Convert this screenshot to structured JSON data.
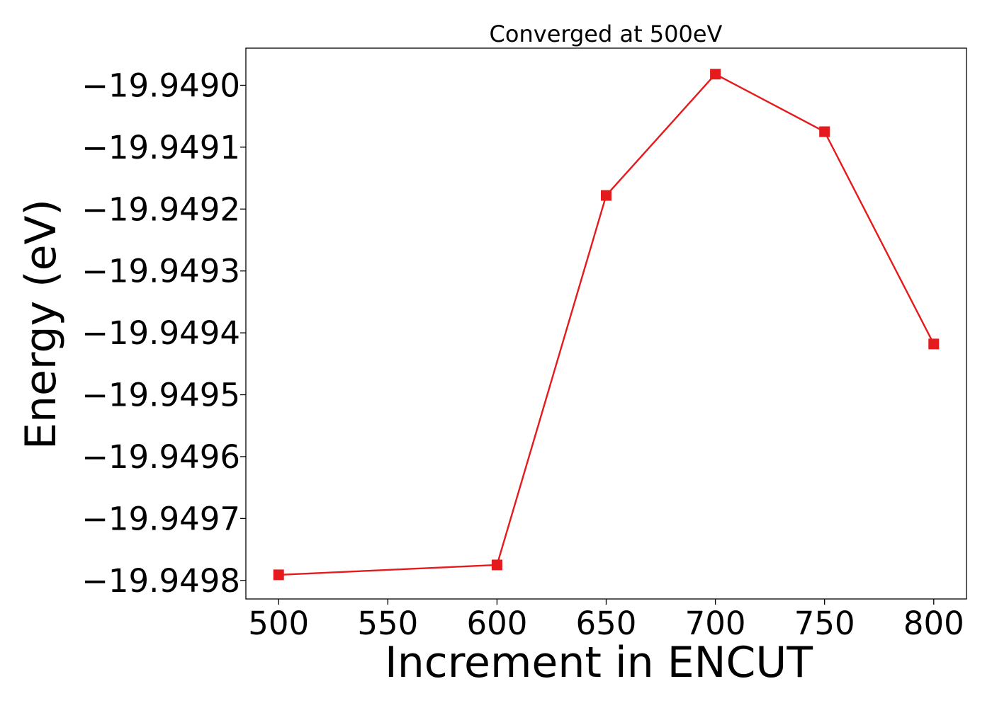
{
  "chart_data": {
    "type": "line",
    "title": "Converged at 500eV",
    "xlabel": "Increment in ENCUT",
    "ylabel": "Energy (eV)",
    "x": [
      500,
      600,
      650,
      700,
      750,
      800
    ],
    "series": [
      {
        "values": [
          -19.949791,
          -19.949775,
          -19.949178,
          -19.948982,
          -19.949075,
          -19.949418
        ],
        "color": "#e41a1c",
        "marker": "square"
      }
    ],
    "xlim": [
      485,
      815
    ],
    "ylim": [
      -19.94983,
      -19.94894
    ],
    "x_ticks": [
      500,
      550,
      600,
      650,
      700,
      750,
      800
    ],
    "x_tick_labels": [
      "500",
      "550",
      "600",
      "650",
      "700",
      "750",
      "800"
    ],
    "y_ticks": [
      -19.949,
      -19.9491,
      -19.9492,
      -19.9493,
      -19.9494,
      -19.9495,
      -19.9496,
      -19.9497,
      -19.9498
    ],
    "y_tick_labels": [
      "−19.9490",
      "−19.9491",
      "−19.9492",
      "−19.9493",
      "−19.9494",
      "−19.9495",
      "−19.9496",
      "−19.9497",
      "−19.9498"
    ],
    "grid": false,
    "legend": "none"
  }
}
